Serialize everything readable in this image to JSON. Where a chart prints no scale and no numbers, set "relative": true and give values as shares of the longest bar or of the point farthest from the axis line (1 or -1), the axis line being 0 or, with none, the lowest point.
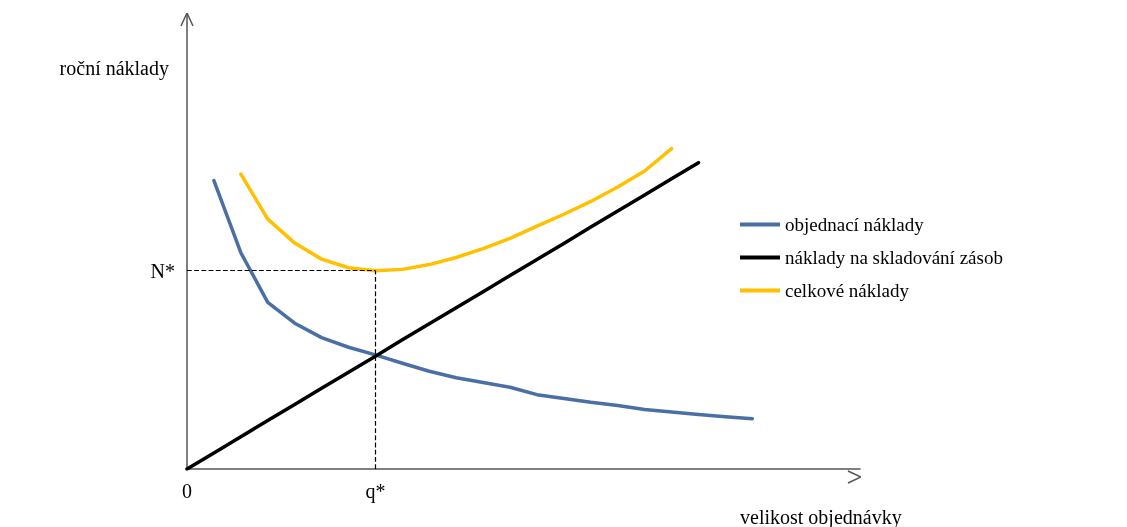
{
  "chart_data": {
    "type": "line",
    "relative": true,
    "xlabel": "velikost objednávky",
    "ylabel": "roční náklady",
    "legend": "right",
    "grid": false,
    "marker": "none",
    "line_style": "solid",
    "tick_labels": "x",
    "categories": [
      "0",
      null,
      null,
      null,
      null,
      null,
      null,
      "q*",
      null,
      null,
      null,
      null,
      null,
      null,
      null,
      null,
      null,
      null,
      null,
      null,
      null,
      null,
      null,
      null,
      null,
      null
    ],
    "series": [
      {
        "name": "objednací náklady",
        "color": "#4a6fa5",
        "values": [
          null,
          0.9,
          0.675,
          0.52,
          0.455,
          0.41,
          0.38,
          0.356,
          0.33,
          0.305,
          0.285,
          0.27,
          0.255,
          0.232,
          0.22,
          0.208,
          0.198,
          0.186,
          0.178,
          0.17,
          0.163,
          0.157,
          null,
          null,
          null,
          null
        ]
      },
      {
        "name": "náklady na skladování zásob",
        "color": "#000000",
        "values": [
          0,
          0.05,
          0.101,
          0.151,
          0.201,
          0.252,
          0.302,
          0.352,
          0.403,
          0.453,
          0.503,
          0.553,
          0.604,
          0.654,
          0.704,
          0.755,
          0.805,
          0.855,
          0.906,
          0.956,
          null,
          null,
          null,
          null,
          null,
          null
        ]
      },
      {
        "name": "celkové náklady",
        "color": "#ffc000",
        "values": [
          null,
          null,
          0.92,
          0.78,
          0.705,
          0.655,
          0.628,
          0.619,
          0.623,
          0.638,
          0.66,
          0.688,
          0.72,
          0.758,
          0.795,
          0.835,
          0.88,
          0.93,
          1.0,
          null,
          null,
          null,
          null,
          null,
          null,
          null
        ]
      }
    ],
    "ref_lines": [
      {
        "axis": "y",
        "value": 0.619,
        "label": "N*",
        "line_style": "dashed",
        "color": "#000000"
      },
      {
        "axis": "x",
        "value": "q*",
        "line_style": "dashed",
        "color": "#000000"
      }
    ]
  }
}
